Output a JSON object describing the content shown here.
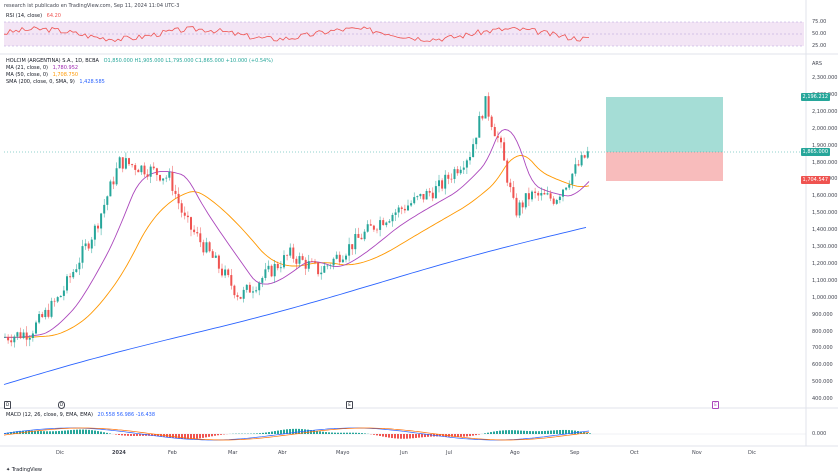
{
  "header": {
    "text": "research ist publicado en TradingView.com, Sep 11, 2024 11:04 UTC-3"
  },
  "rsi": {
    "label": "RSI (14, close)",
    "value": "64.20",
    "ticks": [
      "75.00",
      "50.00",
      "25.00"
    ]
  },
  "legend": {
    "symbol": "HOLCIM (ARGENTINA) S.A., 1D, BCBA",
    "ohlc": "O1,850.000 H1,905.000 L1,795.000 C1,865.000 +10.000 (+0.54%)",
    "ma21": {
      "label": "MA (21, close, 0)",
      "value": "1,780.952",
      "color": "#9c27b0"
    },
    "ma50": {
      "label": "MA (50, close, 0)",
      "value": "1,708.750",
      "color": "#ff9800"
    },
    "sma200": {
      "label": "SMA (200, close, 0, SMA, 9)",
      "value": "1,428.585",
      "color": "#2962ff"
    }
  },
  "price_axis": {
    "currency": "ARS",
    "ticks": [
      "2,300.000",
      "2,200.000",
      "2,100.000",
      "2,000.000",
      "1,900.000",
      "1,800.000",
      "1,700.000",
      "1,600.000",
      "1,500.000",
      "1,400.000",
      "1,300.000",
      "1,200.000",
      "1,100.000",
      "1,000.000",
      "900.000",
      "800.000",
      "700.000",
      "600.000",
      "500.000",
      "400.000"
    ],
    "target_badge": "2,196.212",
    "current_badge": "1,865.000",
    "stop_badge": "1,704.547"
  },
  "macd": {
    "label": "MACD (12, 26, close, 9, EMA, EMA)",
    "values": "20.558  56.986  -16.438",
    "axis_tick": "0.000"
  },
  "time_axis": [
    "Dic",
    "2024",
    "Feb",
    "Mar",
    "Abr",
    "Mayo",
    "Jun",
    "Jul",
    "Ago",
    "Sep",
    "Oct",
    "Nov",
    "Dic"
  ],
  "events": [
    "D",
    "E",
    "E"
  ],
  "colors": {
    "up": "#26a69a",
    "down": "#ef5350",
    "rsi": "#ef5350",
    "rsi_bg": "#f3e5f5",
    "target_zone": "#a5ddd6",
    "stop_zone": "#f8bcbc"
  },
  "footer": "TradingView"
}
